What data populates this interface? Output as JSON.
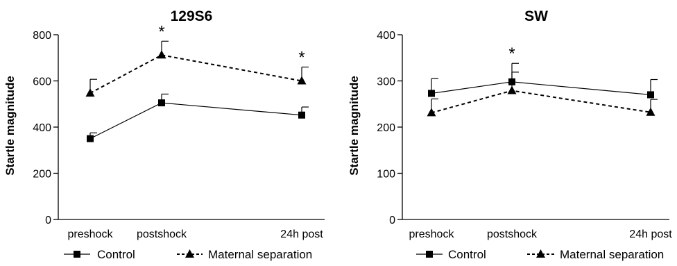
{
  "chart_data": [
    {
      "type": "line",
      "title": "129S6",
      "xlabel": "",
      "ylabel": "Startle magnitude",
      "categories": [
        "preshock",
        "postshock",
        "24h post"
      ],
      "ylim": [
        0,
        800
      ],
      "yticks": [
        0,
        200,
        400,
        600,
        800
      ],
      "series": [
        {
          "name": "Control",
          "values": [
            350,
            505,
            452
          ],
          "error": [
            25,
            38,
            35
          ],
          "marker": "square",
          "line_style": "solid"
        },
        {
          "name": "Maternal separation",
          "values": [
            547,
            712,
            600
          ],
          "error": [
            60,
            60,
            60
          ],
          "marker": "triangle",
          "line_style": "dashed"
        }
      ],
      "annotations": [
        {
          "text": "*",
          "category": "postshock"
        },
        {
          "text": "*",
          "category": "24h post"
        }
      ],
      "legend": "bottom"
    },
    {
      "type": "line",
      "title": "SW",
      "xlabel": "",
      "ylabel": "Startle magnitude",
      "categories": [
        "preshock",
        "postshock",
        "24h post"
      ],
      "ylim": [
        0,
        400
      ],
      "yticks": [
        0,
        100,
        200,
        300,
        400
      ],
      "series": [
        {
          "name": "Control",
          "values": [
            273,
            298,
            270
          ],
          "error": [
            32,
            40,
            33
          ],
          "marker": "square",
          "line_style": "solid"
        },
        {
          "name": "Maternal separation",
          "values": [
            231,
            279,
            232
          ],
          "error": [
            30,
            40,
            28
          ],
          "marker": "triangle",
          "line_style": "dashed"
        }
      ],
      "annotations": [
        {
          "text": "*",
          "category": "postshock"
        }
      ],
      "legend": "bottom"
    }
  ]
}
